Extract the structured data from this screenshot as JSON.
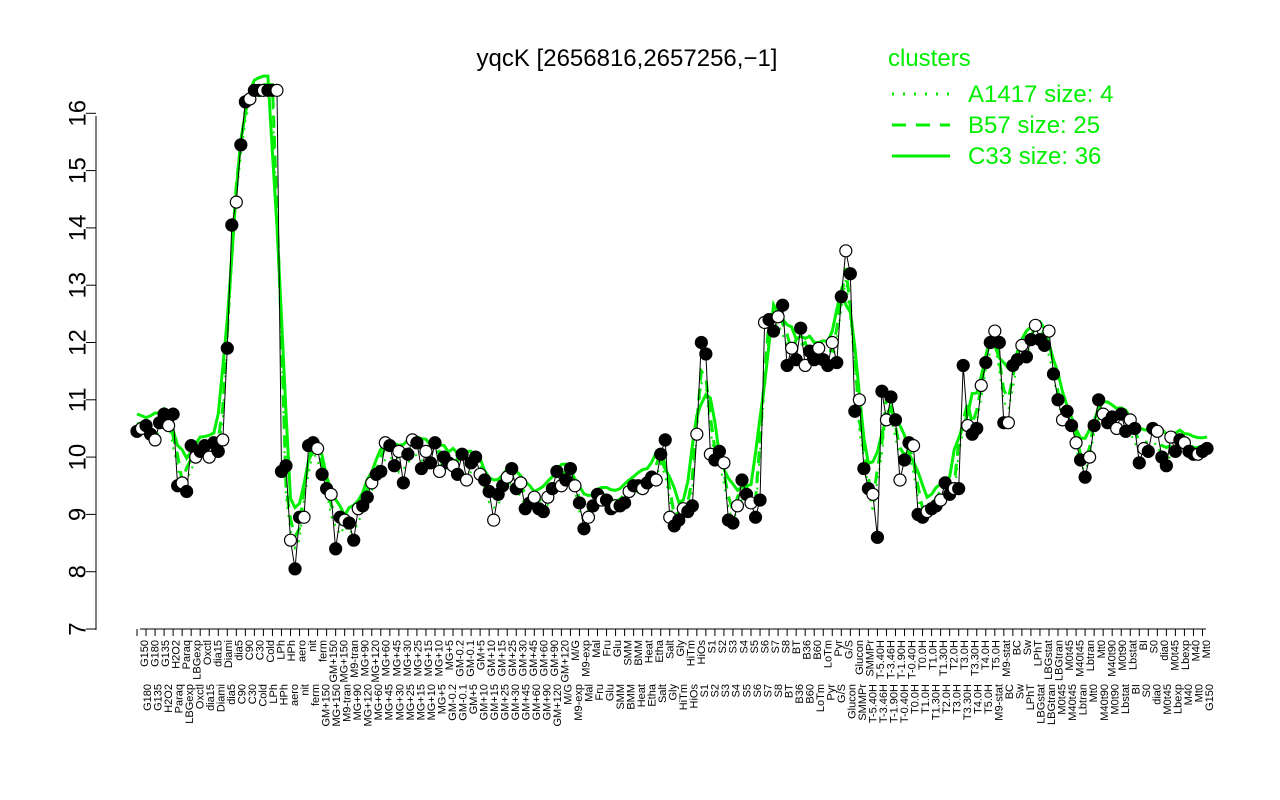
{
  "chart_data": {
    "type": "line",
    "title": "yqcK [2656816,2657256,−1]",
    "xlabel": "",
    "ylabel": "",
    "ylim": [
      7,
      16.5
    ],
    "yticks": [
      7,
      8,
      9,
      10,
      11,
      12,
      13,
      14,
      15,
      16
    ],
    "grid": false,
    "legend_position": "top-right",
    "legend": {
      "title": "clusters",
      "items": [
        {
          "label": "A1417 size: 4",
          "style": "dotted"
        },
        {
          "label": "B57 size: 25",
          "style": "dashed"
        },
        {
          "label": "C33 size: 36",
          "style": "solid"
        }
      ]
    },
    "colors": {
      "cluster_lines": "#00ee00",
      "points": "#000000",
      "legend_text": "#00ee00"
    },
    "xtick_labels_upper": [
      "G150",
      "G180",
      "G135",
      "H2O2",
      "Paraq",
      "LBGexp",
      "Oxctl",
      "dia15",
      "Diami",
      "dia5",
      "C90",
      "C30",
      "Cold",
      "LPh",
      "HPh",
      "aero",
      "nit",
      "ferm",
      "GM+150",
      "MG+150",
      "M9-tran",
      "MG+90",
      "MG+120",
      "MG+60",
      "MG+45",
      "MG+30",
      "MG+25",
      "MG+15",
      "MG+10",
      "MG+5",
      "GM-0.2",
      "GM-0.1",
      "GM+5",
      "GM+10",
      "GM+15",
      "GM+25",
      "GM+30",
      "GM+45",
      "GM+60",
      "GM+90",
      "GM+120",
      "M/G",
      "M9-exp",
      "Mal",
      "Fru",
      "Glu",
      "SMM",
      "BMM",
      "Heat",
      "Etha",
      "Salt",
      "Gly",
      "HiTm",
      "HiOs",
      "S1",
      "S2",
      "S3",
      "S4",
      "S5",
      "S6",
      "S7",
      "S8",
      "BT",
      "B36",
      "B60",
      "LoTm",
      "Pyr",
      "G/S",
      "Glucon",
      "SMMPr",
      "T-5.40H",
      "T-3.46H",
      "T-1.90H",
      "T-0.40H",
      "T0.0H",
      "T1.0H",
      "T1.30H",
      "T2.0H",
      "T3.0H",
      "T3.30H",
      "T4.0H",
      "T5.0H",
      "M9-stat",
      "BC",
      "Sw",
      "LPhT",
      "LBGstat",
      "LBGtran",
      "M0t45",
      "M40t45",
      "Lbtran",
      "Mt0",
      "M40t90",
      "M0t90",
      "Lbstat",
      "BI",
      "S0",
      "dia0",
      "M0t45",
      "Lbexp",
      "M40",
      "Mt0"
    ],
    "points": [
      [
        0,
        10.45
      ],
      [
        1,
        10.5
      ],
      [
        2,
        10.55
      ],
      [
        3,
        10.4
      ],
      [
        4,
        10.3
      ],
      [
        5,
        10.6
      ],
      [
        6,
        10.75
      ],
      [
        7,
        10.55
      ],
      [
        8,
        10.75
      ],
      [
        9,
        9.5
      ],
      [
        10,
        9.55
      ],
      [
        11,
        9.4
      ],
      [
        12,
        10.2
      ],
      [
        13,
        10.0
      ],
      [
        14,
        10.1
      ],
      [
        15,
        10.2
      ],
      [
        16,
        10.0
      ],
      [
        17,
        10.25
      ],
      [
        18,
        10.1
      ],
      [
        19,
        10.3
      ],
      [
        20,
        11.9
      ],
      [
        21,
        14.05
      ],
      [
        22,
        14.45
      ],
      [
        23,
        15.45
      ],
      [
        24,
        16.2
      ],
      [
        25,
        16.25
      ],
      [
        26,
        16.4
      ],
      [
        27,
        16.4
      ],
      [
        28,
        16.4
      ],
      [
        29,
        16.4
      ],
      [
        30,
        16.4
      ],
      [
        31,
        16.4
      ],
      [
        32,
        9.75
      ],
      [
        33,
        9.85
      ],
      [
        34,
        8.55
      ],
      [
        35,
        8.05
      ],
      [
        36,
        8.95
      ],
      [
        37,
        8.95
      ],
      [
        38,
        10.2
      ],
      [
        39,
        10.25
      ],
      [
        40,
        10.15
      ],
      [
        41,
        9.7
      ],
      [
        42,
        9.45
      ],
      [
        43,
        9.35
      ],
      [
        44,
        8.4
      ],
      [
        45,
        8.95
      ],
      [
        46,
        8.9
      ],
      [
        47,
        8.85
      ],
      [
        48,
        8.55
      ],
      [
        49,
        9.1
      ],
      [
        50,
        9.15
      ],
      [
        51,
        9.3
      ],
      [
        52,
        9.55
      ],
      [
        53,
        9.7
      ],
      [
        54,
        9.75
      ],
      [
        55,
        10.25
      ],
      [
        56,
        10.2
      ],
      [
        57,
        9.85
      ],
      [
        58,
        10.1
      ],
      [
        59,
        9.55
      ],
      [
        60,
        10.05
      ],
      [
        61,
        10.3
      ],
      [
        62,
        10.25
      ],
      [
        63,
        9.8
      ],
      [
        64,
        10.1
      ],
      [
        65,
        9.9
      ],
      [
        66,
        10.25
      ],
      [
        67,
        9.75
      ],
      [
        68,
        10.0
      ],
      [
        69,
        9.9
      ],
      [
        70,
        9.85
      ],
      [
        71,
        9.7
      ],
      [
        72,
        10.05
      ],
      [
        73,
        9.6
      ],
      [
        74,
        9.9
      ],
      [
        75,
        10.0
      ],
      [
        76,
        9.7
      ],
      [
        77,
        9.6
      ],
      [
        78,
        9.4
      ],
      [
        79,
        8.9
      ],
      [
        80,
        9.35
      ],
      [
        81,
        9.5
      ],
      [
        82,
        9.65
      ],
      [
        83,
        9.8
      ],
      [
        84,
        9.45
      ],
      [
        85,
        9.55
      ],
      [
        86,
        9.1
      ],
      [
        87,
        9.2
      ],
      [
        88,
        9.3
      ],
      [
        89,
        9.1
      ],
      [
        90,
        9.05
      ],
      [
        91,
        9.3
      ],
      [
        92,
        9.45
      ],
      [
        93,
        9.75
      ],
      [
        94,
        9.5
      ],
      [
        95,
        9.6
      ],
      [
        96,
        9.8
      ],
      [
        97,
        9.5
      ],
      [
        98,
        9.2
      ],
      [
        99,
        8.75
      ],
      [
        100,
        8.95
      ],
      [
        101,
        9.15
      ],
      [
        102,
        9.35
      ],
      [
        103,
        9.25
      ],
      [
        104,
        9.25
      ],
      [
        105,
        9.1
      ],
      [
        106,
        9.15
      ],
      [
        107,
        9.15
      ],
      [
        108,
        9.2
      ],
      [
        109,
        9.4
      ],
      [
        110,
        9.5
      ],
      [
        111,
        9.5
      ],
      [
        112,
        9.45
      ],
      [
        113,
        9.55
      ],
      [
        114,
        9.65
      ],
      [
        115,
        9.6
      ],
      [
        116,
        10.05
      ],
      [
        117,
        10.3
      ],
      [
        118,
        8.95
      ],
      [
        119,
        8.8
      ],
      [
        120,
        8.9
      ],
      [
        121,
        9.1
      ],
      [
        122,
        9.05
      ],
      [
        123,
        9.15
      ],
      [
        124,
        10.4
      ],
      [
        125,
        12.0
      ],
      [
        126,
        11.8
      ],
      [
        127,
        10.05
      ],
      [
        128,
        9.95
      ],
      [
        129,
        10.1
      ],
      [
        130,
        9.9
      ],
      [
        131,
        8.9
      ],
      [
        132,
        8.85
      ],
      [
        133,
        9.15
      ],
      [
        134,
        9.6
      ],
      [
        135,
        9.35
      ],
      [
        136,
        9.2
      ],
      [
        137,
        8.95
      ],
      [
        138,
        9.25
      ],
      [
        139,
        12.35
      ],
      [
        140,
        12.4
      ],
      [
        141,
        12.2
      ],
      [
        142,
        12.45
      ],
      [
        143,
        12.65
      ],
      [
        144,
        11.6
      ],
      [
        145,
        11.9
      ],
      [
        146,
        11.7
      ],
      [
        147,
        12.25
      ],
      [
        148,
        11.6
      ],
      [
        149,
        11.85
      ],
      [
        150,
        11.7
      ],
      [
        151,
        11.9
      ],
      [
        152,
        11.7
      ],
      [
        153,
        11.6
      ],
      [
        154,
        12.0
      ],
      [
        155,
        11.65
      ],
      [
        156,
        12.8
      ],
      [
        157,
        13.6
      ],
      [
        158,
        13.2
      ],
      [
        159,
        10.8
      ],
      [
        160,
        11.0
      ],
      [
        161,
        9.8
      ],
      [
        162,
        9.45
      ],
      [
        163,
        9.35
      ],
      [
        164,
        8.6
      ],
      [
        165,
        11.15
      ],
      [
        166,
        10.65
      ],
      [
        167,
        11.05
      ],
      [
        168,
        10.65
      ],
      [
        169,
        9.6
      ],
      [
        170,
        9.95
      ],
      [
        171,
        10.25
      ],
      [
        172,
        10.2
      ],
      [
        173,
        9.0
      ],
      [
        174,
        8.95
      ],
      [
        175,
        9.05
      ],
      [
        176,
        9.1
      ],
      [
        177,
        9.15
      ],
      [
        178,
        9.25
      ],
      [
        179,
        9.55
      ],
      [
        180,
        9.35
      ],
      [
        181,
        9.45
      ],
      [
        182,
        9.45
      ],
      [
        183,
        11.6
      ],
      [
        184,
        10.55
      ],
      [
        185,
        10.4
      ],
      [
        186,
        10.5
      ],
      [
        187,
        11.25
      ],
      [
        188,
        11.65
      ],
      [
        189,
        12.0
      ],
      [
        190,
        12.2
      ],
      [
        191,
        12.0
      ],
      [
        192,
        10.6
      ],
      [
        193,
        10.6
      ],
      [
        194,
        11.6
      ],
      [
        195,
        11.7
      ],
      [
        196,
        11.95
      ],
      [
        197,
        11.75
      ],
      [
        198,
        12.05
      ],
      [
        199,
        12.3
      ],
      [
        200,
        12.05
      ],
      [
        201,
        11.95
      ],
      [
        202,
        12.2
      ],
      [
        203,
        11.45
      ],
      [
        204,
        11.0
      ],
      [
        205,
        10.65
      ],
      [
        206,
        10.8
      ],
      [
        207,
        10.55
      ],
      [
        208,
        10.25
      ],
      [
        209,
        9.95
      ],
      [
        210,
        9.65
      ],
      [
        211,
        10.0
      ],
      [
        212,
        10.55
      ],
      [
        213,
        11.0
      ],
      [
        214,
        10.75
      ],
      [
        215,
        10.6
      ],
      [
        216,
        10.7
      ],
      [
        217,
        10.5
      ],
      [
        218,
        10.75
      ],
      [
        219,
        10.45
      ],
      [
        220,
        10.65
      ],
      [
        221,
        10.5
      ],
      [
        222,
        9.9
      ],
      [
        223,
        10.15
      ],
      [
        224,
        10.1
      ],
      [
        225,
        10.5
      ],
      [
        226,
        10.45
      ],
      [
        227,
        10.0
      ],
      [
        228,
        9.85
      ],
      [
        229,
        10.35
      ],
      [
        230,
        10.1
      ],
      [
        231,
        10.3
      ],
      [
        232,
        10.25
      ],
      [
        233,
        10.1
      ],
      [
        234,
        10.05
      ],
      [
        235,
        10.05
      ],
      [
        236,
        10.1
      ],
      [
        237,
        10.15
      ]
    ],
    "series": [
      {
        "name": "A1417 size: 4",
        "style": "dotted"
      },
      {
        "name": "B57 size: 25",
        "style": "dashed"
      },
      {
        "name": "C33 size: 36",
        "style": "solid"
      }
    ]
  }
}
